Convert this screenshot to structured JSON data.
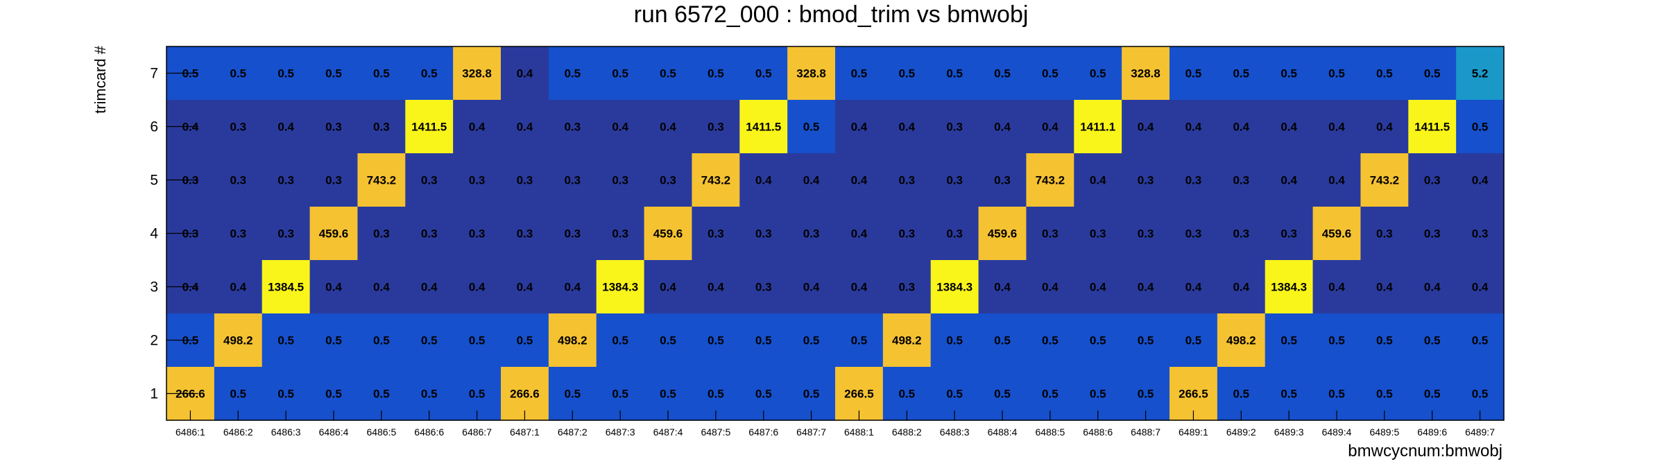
{
  "chart_data": {
    "type": "heatmap",
    "title": "run 6572_000 : bmod_trim vs bmwobj",
    "xlabel": "bmwcycnum:bmwobj",
    "ylabel": "trimcard #",
    "x_categories": [
      "6486:1",
      "6486:2",
      "6486:3",
      "6486:4",
      "6486:5",
      "6486:6",
      "6486:7",
      "6487:1",
      "6487:2",
      "6487:3",
      "6487:4",
      "6487:5",
      "6487:6",
      "6487:7",
      "6488:1",
      "6488:2",
      "6488:3",
      "6488:4",
      "6488:5",
      "6488:6",
      "6488:7",
      "6489:1",
      "6489:2",
      "6489:3",
      "6489:4",
      "6489:5",
      "6489:6",
      "6489:7"
    ],
    "y_categories": [
      "7",
      "6",
      "5",
      "4",
      "3",
      "2",
      "1"
    ],
    "values": [
      [
        "0.5",
        "0.5",
        "0.5",
        "0.5",
        "0.5",
        "0.5",
        "328.8",
        "0.4",
        "0.5",
        "0.5",
        "0.5",
        "0.5",
        "0.5",
        "328.8",
        "0.5",
        "0.5",
        "0.5",
        "0.5",
        "0.5",
        "0.5",
        "328.8",
        "0.5",
        "0.5",
        "0.5",
        "0.5",
        "0.5",
        "0.5",
        "5.2"
      ],
      [
        "0.4",
        "0.3",
        "0.4",
        "0.3",
        "0.3",
        "1411.5",
        "0.4",
        "0.4",
        "0.3",
        "0.4",
        "0.4",
        "0.3",
        "1411.5",
        "0.5",
        "0.4",
        "0.4",
        "0.3",
        "0.4",
        "0.4",
        "1411.1",
        "0.4",
        "0.4",
        "0.4",
        "0.4",
        "0.4",
        "0.4",
        "1411.5",
        "0.5"
      ],
      [
        "0.3",
        "0.3",
        "0.3",
        "0.3",
        "743.2",
        "0.3",
        "0.3",
        "0.3",
        "0.3",
        "0.3",
        "0.3",
        "743.2",
        "0.4",
        "0.4",
        "0.4",
        "0.3",
        "0.3",
        "0.3",
        "743.2",
        "0.4",
        "0.3",
        "0.3",
        "0.3",
        "0.4",
        "0.4",
        "743.2",
        "0.3",
        "0.4"
      ],
      [
        "0.3",
        "0.3",
        "0.3",
        "459.6",
        "0.3",
        "0.3",
        "0.3",
        "0.3",
        "0.3",
        "0.3",
        "459.6",
        "0.3",
        "0.3",
        "0.3",
        "0.4",
        "0.3",
        "0.3",
        "459.6",
        "0.3",
        "0.3",
        "0.3",
        "0.3",
        "0.3",
        "0.3",
        "459.6",
        "0.3",
        "0.3",
        "0.3"
      ],
      [
        "0.4",
        "0.4",
        "1384.5",
        "0.4",
        "0.4",
        "0.4",
        "0.4",
        "0.4",
        "0.4",
        "1384.3",
        "0.4",
        "0.4",
        "0.3",
        "0.4",
        "0.4",
        "0.3",
        "1384.3",
        "0.4",
        "0.4",
        "0.4",
        "0.4",
        "0.4",
        "0.4",
        "1384.3",
        "0.4",
        "0.4",
        "0.4",
        "0.4"
      ],
      [
        "0.5",
        "498.2",
        "0.5",
        "0.5",
        "0.5",
        "0.5",
        "0.5",
        "0.5",
        "498.2",
        "0.5",
        "0.5",
        "0.5",
        "0.5",
        "0.5",
        "0.5",
        "498.2",
        "0.5",
        "0.5",
        "0.5",
        "0.5",
        "0.5",
        "0.5",
        "498.2",
        "0.5",
        "0.5",
        "0.5",
        "0.5",
        "0.5"
      ],
      [
        "266.6",
        "0.5",
        "0.5",
        "0.5",
        "0.5",
        "0.5",
        "0.5",
        "266.6",
        "0.5",
        "0.5",
        "0.5",
        "0.5",
        "0.5",
        "0.5",
        "266.5",
        "0.5",
        "0.5",
        "0.5",
        "0.5",
        "0.5",
        "0.5",
        "266.5",
        "0.5",
        "0.5",
        "0.5",
        "0.5",
        "0.5",
        "0.5"
      ]
    ],
    "colors": {
      "dark_blue": "#2a3a9c",
      "blue": "#1650cc",
      "teal": "#1a98c8",
      "orange": "#f5c232",
      "yellow": "#f9f51a"
    },
    "grid": false,
    "legend": "none"
  }
}
